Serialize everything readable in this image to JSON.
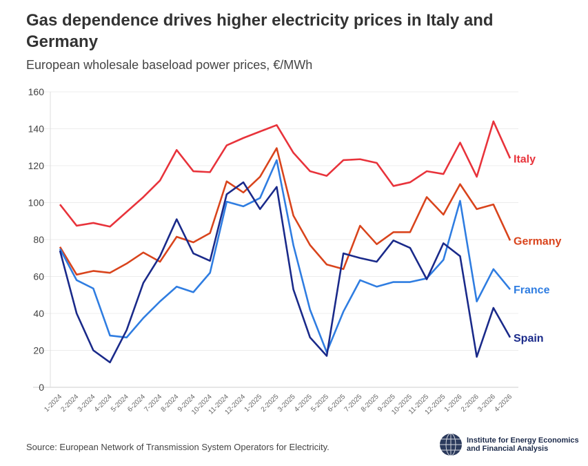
{
  "title": "Gas dependence drives higher electricity prices in Italy and Germany",
  "subtitle": "European wholesale baseload power prices, €/MWh",
  "source": "Source: European Network of Transmission System Operators for Electricity.",
  "logo": {
    "line1": "Institute for Energy Economics",
    "line2": "and Financial Analysis",
    "icon": "globe-icon"
  },
  "chart_data": {
    "type": "line",
    "title": "Gas dependence drives higher electricity prices in Italy and Germany",
    "ylabel": "",
    "xlabel": "",
    "ylim": [
      0,
      160
    ],
    "yticks": [
      0,
      20,
      40,
      60,
      80,
      100,
      120,
      140,
      160
    ],
    "grid": true,
    "legend": "end-of-line labels",
    "categories": [
      "1-2024",
      "2-2024",
      "3-2024",
      "4-2024",
      "5-2024",
      "6-2024",
      "7-2024",
      "8-2024",
      "9-2024",
      "10-2024",
      "11-2024",
      "12-2024",
      "1-2025",
      "2-2025",
      "3-2025",
      "4-2025",
      "5-2025",
      "6-2025",
      "7-2025",
      "8-2025",
      "9-2025",
      "10-2025",
      "11-2025",
      "12-2025",
      "1-2026",
      "2-2026",
      "3-2026",
      "4-2026"
    ],
    "series": [
      {
        "name": "Italy",
        "color": "#e8333b",
        "values": [
          99,
          87.5,
          89,
          87,
          95,
          103,
          112,
          128.5,
          117,
          116.5,
          131,
          135,
          138.5,
          142,
          127,
          117,
          114.5,
          123,
          123.5,
          121.5,
          109,
          111,
          117,
          115.5,
          132.5,
          114,
          144,
          124
        ]
      },
      {
        "name": "Germany",
        "color": "#d9441c",
        "values": [
          76,
          61,
          63,
          62,
          67,
          73,
          68,
          81.5,
          78.5,
          83.5,
          111.5,
          105.5,
          114,
          129.5,
          93,
          77,
          66.5,
          64,
          87.5,
          77.5,
          84,
          84,
          103,
          93.5,
          110,
          96.5,
          99,
          79.5
        ]
      },
      {
        "name": "France",
        "color": "#2f7de1",
        "values": [
          75,
          58,
          53.5,
          28,
          27,
          37.5,
          46.5,
          54.5,
          51.5,
          62,
          100.5,
          98,
          102.5,
          123,
          77,
          42,
          19,
          41,
          58,
          54.5,
          57,
          57,
          59,
          69,
          101,
          46.5,
          64,
          53
        ]
      },
      {
        "name": "Spain",
        "color": "#1a2a8a",
        "values": [
          74,
          40,
          20,
          13.5,
          31,
          56.5,
          71,
          91,
          72.5,
          68.5,
          104.5,
          111,
          96.5,
          108.5,
          53,
          27,
          17,
          72.5,
          70,
          68,
          79.5,
          75.5,
          58.5,
          78,
          71,
          16.5,
          43,
          27
        ]
      }
    ]
  }
}
